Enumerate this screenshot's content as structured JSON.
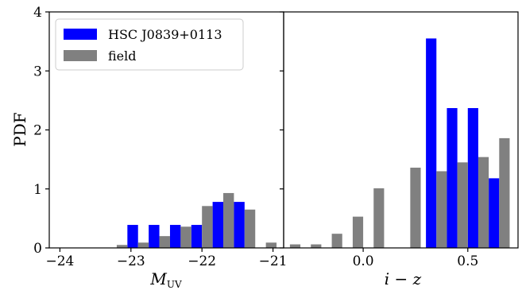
{
  "chart_data": [
    {
      "type": "bar",
      "panel": "left",
      "xlabel": "M",
      "xlabel_sub": "UV",
      "ylabel": "PDF",
      "xlim": [
        -24.15,
        -20.85
      ],
      "ylim": [
        0,
        4
      ],
      "xticks": [
        -24,
        -23,
        -22,
        -21
      ],
      "xtick_labels": [
        "−24",
        "−23",
        "−22",
        "−21"
      ],
      "yticks": [
        0,
        1,
        2,
        3,
        4
      ],
      "ytick_labels": [
        "0",
        "1",
        "2",
        "3",
        "4"
      ],
      "bin_width": 0.149,
      "legend": {
        "placement": "top-left",
        "entries": [
          "HSC J0839+0113",
          "field"
        ]
      },
      "series": [
        {
          "name": "HSC J0839+0113",
          "color": "#0000ff",
          "bins": [
            {
              "x0": -23.05,
              "x1": -22.9,
              "value": 0.39
            },
            {
              "x0": -22.75,
              "x1": -22.6,
              "value": 0.39
            },
            {
              "x0": -22.45,
              "x1": -22.3,
              "value": 0.39
            },
            {
              "x0": -22.15,
              "x1": -22.0,
              "value": 0.39
            },
            {
              "x0": -21.85,
              "x1": -21.7,
              "value": 0.78
            },
            {
              "x0": -21.55,
              "x1": -21.4,
              "value": 0.78
            }
          ]
        },
        {
          "name": "field",
          "color": "#808080",
          "bins": [
            {
              "x0": -23.2,
              "x1": -23.05,
              "value": 0.05
            },
            {
              "x0": -22.9,
              "x1": -22.75,
              "value": 0.09
            },
            {
              "x0": -22.6,
              "x1": -22.45,
              "value": 0.2
            },
            {
              "x0": -22.3,
              "x1": -22.15,
              "value": 0.36
            },
            {
              "x0": -22.0,
              "x1": -21.85,
              "value": 0.71
            },
            {
              "x0": -21.7,
              "x1": -21.55,
              "value": 0.93
            },
            {
              "x0": -21.4,
              "x1": -21.25,
              "value": 0.65
            },
            {
              "x0": -21.1,
              "x1": -20.95,
              "value": 0.09
            }
          ]
        }
      ]
    },
    {
      "type": "bar",
      "panel": "right",
      "xlabel": "i − z",
      "ylabel": "",
      "xlim": [
        -0.38,
        0.74
      ],
      "ylim": [
        0,
        4
      ],
      "xticks": [
        0.0,
        0.5
      ],
      "xtick_labels": [
        "0.0",
        "0.5"
      ],
      "series": [
        {
          "name": "HSC J0839+0113",
          "color": "#0000ff",
          "bins": [
            {
              "x0": 0.3,
              "x1": 0.35,
              "value": 3.55
            },
            {
              "x0": 0.4,
              "x1": 0.45,
              "value": 2.37
            },
            {
              "x0": 0.5,
              "x1": 0.55,
              "value": 2.37
            },
            {
              "x0": 0.6,
              "x1": 0.65,
              "value": 1.18
            }
          ]
        },
        {
          "name": "field",
          "color": "#808080",
          "bins": [
            {
              "x0": -0.35,
              "x1": -0.3,
              "value": 0.06
            },
            {
              "x0": -0.25,
              "x1": -0.2,
              "value": 0.06
            },
            {
              "x0": -0.15,
              "x1": -0.1,
              "value": 0.24
            },
            {
              "x0": -0.05,
              "x1": 0.0,
              "value": 0.53
            },
            {
              "x0": 0.05,
              "x1": 0.1,
              "value": 1.01
            },
            {
              "x0": 0.15,
              "x1": 0.2,
              "value": 0.0
            },
            {
              "x0": 0.225,
              "x1": 0.275,
              "value": 1.36
            },
            {
              "x0": 0.35,
              "x1": 0.4,
              "value": 1.3
            },
            {
              "x0": 0.45,
              "x1": 0.5,
              "value": 1.45
            },
            {
              "x0": 0.55,
              "x1": 0.6,
              "value": 1.54
            },
            {
              "x0": 0.65,
              "x1": 0.7,
              "value": 1.86
            }
          ]
        }
      ]
    }
  ]
}
